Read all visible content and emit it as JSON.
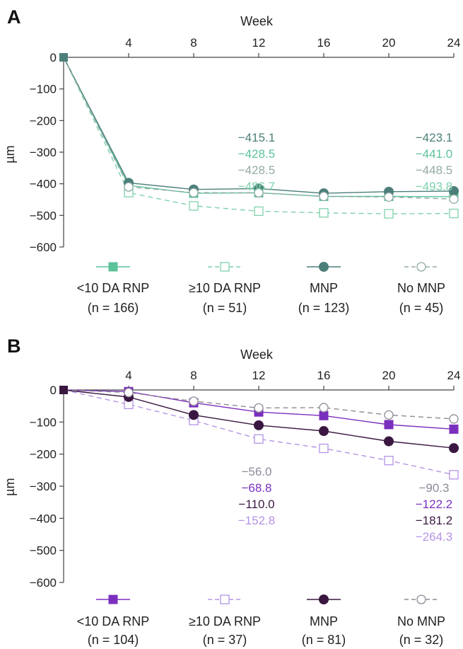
{
  "chart_data": [
    {
      "panel": "A",
      "type": "line",
      "xlabel": "Week",
      "ylabel": "µm",
      "x": [
        0,
        4,
        8,
        12,
        16,
        20,
        24
      ],
      "x_ticks": [
        "4",
        "8",
        "12",
        "16",
        "20",
        "24"
      ],
      "ylim": [
        -600,
        0
      ],
      "y_ticks": [
        "0",
        "−100",
        "−200",
        "−300",
        "−400",
        "−500",
        "−600"
      ],
      "grid": false,
      "legend_position": "bottom",
      "series": [
        {
          "name": "<10 DA RNP",
          "n": "(n = 166)",
          "color": "#5cc29a",
          "marker": "square-filled",
          "dash": false,
          "values": [
            0,
            -405,
            -430,
            -428.5,
            -440,
            -440,
            -441.0
          ]
        },
        {
          "name": "≥10 DA RNP",
          "n": "(n = 51)",
          "color": "#7fd1ac",
          "marker": "square-open",
          "dash": true,
          "values": [
            0,
            -428,
            -470,
            -486.7,
            -492,
            -495,
            -493.8
          ]
        },
        {
          "name": "MNP",
          "n": "(n = 123)",
          "color": "#4c7f7a",
          "marker": "circle-filled",
          "dash": false,
          "values": [
            0,
            -397,
            -418,
            -415.1,
            -430,
            -425,
            -423.1
          ]
        },
        {
          "name": "No MNP",
          "n": "(n = 45)",
          "color": "#92aaa6",
          "marker": "circle-open",
          "dash": true,
          "values": [
            0,
            -410,
            -428,
            -428.5,
            -440,
            -442,
            -448.5
          ]
        }
      ],
      "annotations": [
        {
          "text": "−415.1",
          "color": "#4c7f7a",
          "x": 12
        },
        {
          "text": "−428.5",
          "color": "#5cc29a",
          "x": 12
        },
        {
          "text": "−428.5",
          "color": "#92aaa6",
          "x": 12
        },
        {
          "text": "−486.7",
          "color": "#7fd1ac",
          "x": 12
        },
        {
          "text": "−423.1",
          "color": "#4c7f7a",
          "x": 24
        },
        {
          "text": "−441.0",
          "color": "#5cc29a",
          "x": 24
        },
        {
          "text": "−448.5",
          "color": "#92aaa6",
          "x": 24
        },
        {
          "text": "−493.8",
          "color": "#7fd1ac",
          "x": 24
        }
      ]
    },
    {
      "panel": "B",
      "type": "line",
      "xlabel": "Week",
      "ylabel": "µm",
      "x": [
        0,
        4,
        8,
        12,
        16,
        20,
        24
      ],
      "x_ticks": [
        "4",
        "8",
        "12",
        "16",
        "20",
        "24"
      ],
      "ylim": [
        -600,
        0
      ],
      "y_ticks": [
        "0",
        "−100",
        "−200",
        "−300",
        "−400",
        "−500",
        "−600"
      ],
      "grid": false,
      "legend_position": "bottom",
      "series": [
        {
          "name": "<10 DA RNP",
          "n": "(n = 104)",
          "color": "#7b2fbe",
          "marker": "square-filled",
          "dash": false,
          "values": [
            0,
            -5,
            -40,
            -68.8,
            -80,
            -108,
            -122.2
          ]
        },
        {
          "name": "≥10 DA RNP",
          "n": "(n = 37)",
          "color": "#b493e6",
          "marker": "square-open",
          "dash": true,
          "values": [
            0,
            -45,
            -95,
            -152.8,
            -182,
            -220,
            -264.3
          ]
        },
        {
          "name": "MNP",
          "n": "(n = 81)",
          "color": "#3a1740",
          "marker": "circle-filled",
          "dash": false,
          "values": [
            0,
            -22,
            -78,
            -110.0,
            -128,
            -160,
            -181.2
          ]
        },
        {
          "name": "No MNP",
          "n": "(n = 32)",
          "color": "#8e8a96",
          "marker": "circle-open",
          "dash": true,
          "values": [
            0,
            -8,
            -35,
            -56.0,
            -55,
            -78,
            -90.3
          ]
        }
      ],
      "annotations": [
        {
          "text": "−56.0",
          "color": "#8e8a96",
          "x": 12
        },
        {
          "text": "−68.8",
          "color": "#7b2fbe",
          "x": 12
        },
        {
          "text": "−110.0",
          "color": "#3a1740",
          "x": 12
        },
        {
          "text": "−152.8",
          "color": "#b493e6",
          "x": 12
        },
        {
          "text": "−90.3",
          "color": "#8e8a96",
          "x": 24
        },
        {
          "text": "−122.2",
          "color": "#7b2fbe",
          "x": 24
        },
        {
          "text": "−181.2",
          "color": "#3a1740",
          "x": 24
        },
        {
          "text": "−264.3",
          "color": "#b493e6",
          "x": 24
        }
      ]
    }
  ]
}
